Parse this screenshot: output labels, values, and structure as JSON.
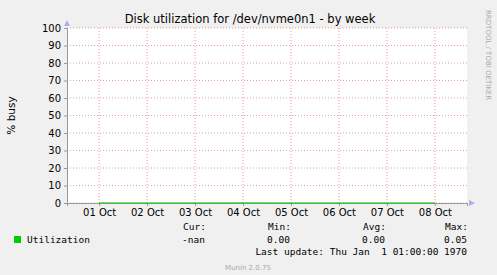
{
  "chart_data": {
    "type": "line",
    "title": "Disk utilization for /dev/nvme0n1 - by week",
    "y_label": "% busy",
    "categories": [
      "01 Oct",
      "02 Oct",
      "03 Oct",
      "04 Oct",
      "05 Oct",
      "06 Oct",
      "07 Oct",
      "08 Oct"
    ],
    "series": [
      {
        "name": "Utilization",
        "color": "#00cc00",
        "values": [
          0,
          0,
          0,
          0.05,
          0,
          0,
          0,
          0
        ],
        "stats": [
          "-nan",
          "0.00",
          "0.00",
          "0.05"
        ]
      }
    ],
    "stat_labels": [
      "Cur:",
      "Min:",
      "Avg:",
      "Max:"
    ],
    "ylim": [
      0,
      100
    ],
    "yticks": [
      0,
      10,
      20,
      30,
      40,
      50,
      60,
      70,
      80,
      90,
      100
    ],
    "grid": true,
    "footer": "Last update: Thu Jan  1 01:00:00 1970",
    "credit": "Munin 2.0.75",
    "watermark": "RRDTOOL / TOBI OETIKER"
  }
}
